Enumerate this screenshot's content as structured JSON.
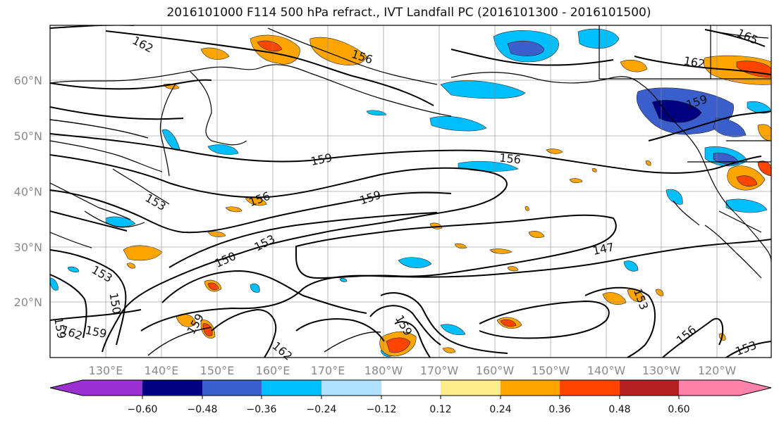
{
  "title": "2016101000 F114 500 hPa refract., IVT Landfall PC (2016101300 - 2016101500)",
  "map": {
    "lat_labels": [
      "60°N",
      "50°N",
      "40°N",
      "30°N",
      "20°N"
    ],
    "lon_labels": [
      "130°E",
      "140°E",
      "150°E",
      "160°E",
      "170°E",
      "180°W",
      "170°W",
      "160°W",
      "150°W",
      "140°W",
      "130°W",
      "120°W"
    ],
    "contour_labels": [
      "162",
      "156",
      "162",
      "165",
      "159",
      "159",
      "156",
      "153",
      "156",
      "159",
      "153",
      "147",
      "150",
      "153",
      "150",
      "159",
      "162",
      "159",
      "159",
      "162",
      "153",
      "156",
      "153",
      "159"
    ]
  },
  "colorbar": {
    "tick_labels": [
      "−0.60",
      "−0.48",
      "−0.36",
      "−0.24",
      "−0.12",
      "0.12",
      "0.24",
      "0.36",
      "0.48",
      "0.60"
    ],
    "colors": [
      "#9b30d0",
      "#000080",
      "#3a5fcd",
      "#00bfff",
      "#b0e2ff",
      "#ffffff",
      "#ffec8b",
      "#ffa500",
      "#ff4500",
      "#b22222",
      "#ff82ab"
    ]
  }
}
